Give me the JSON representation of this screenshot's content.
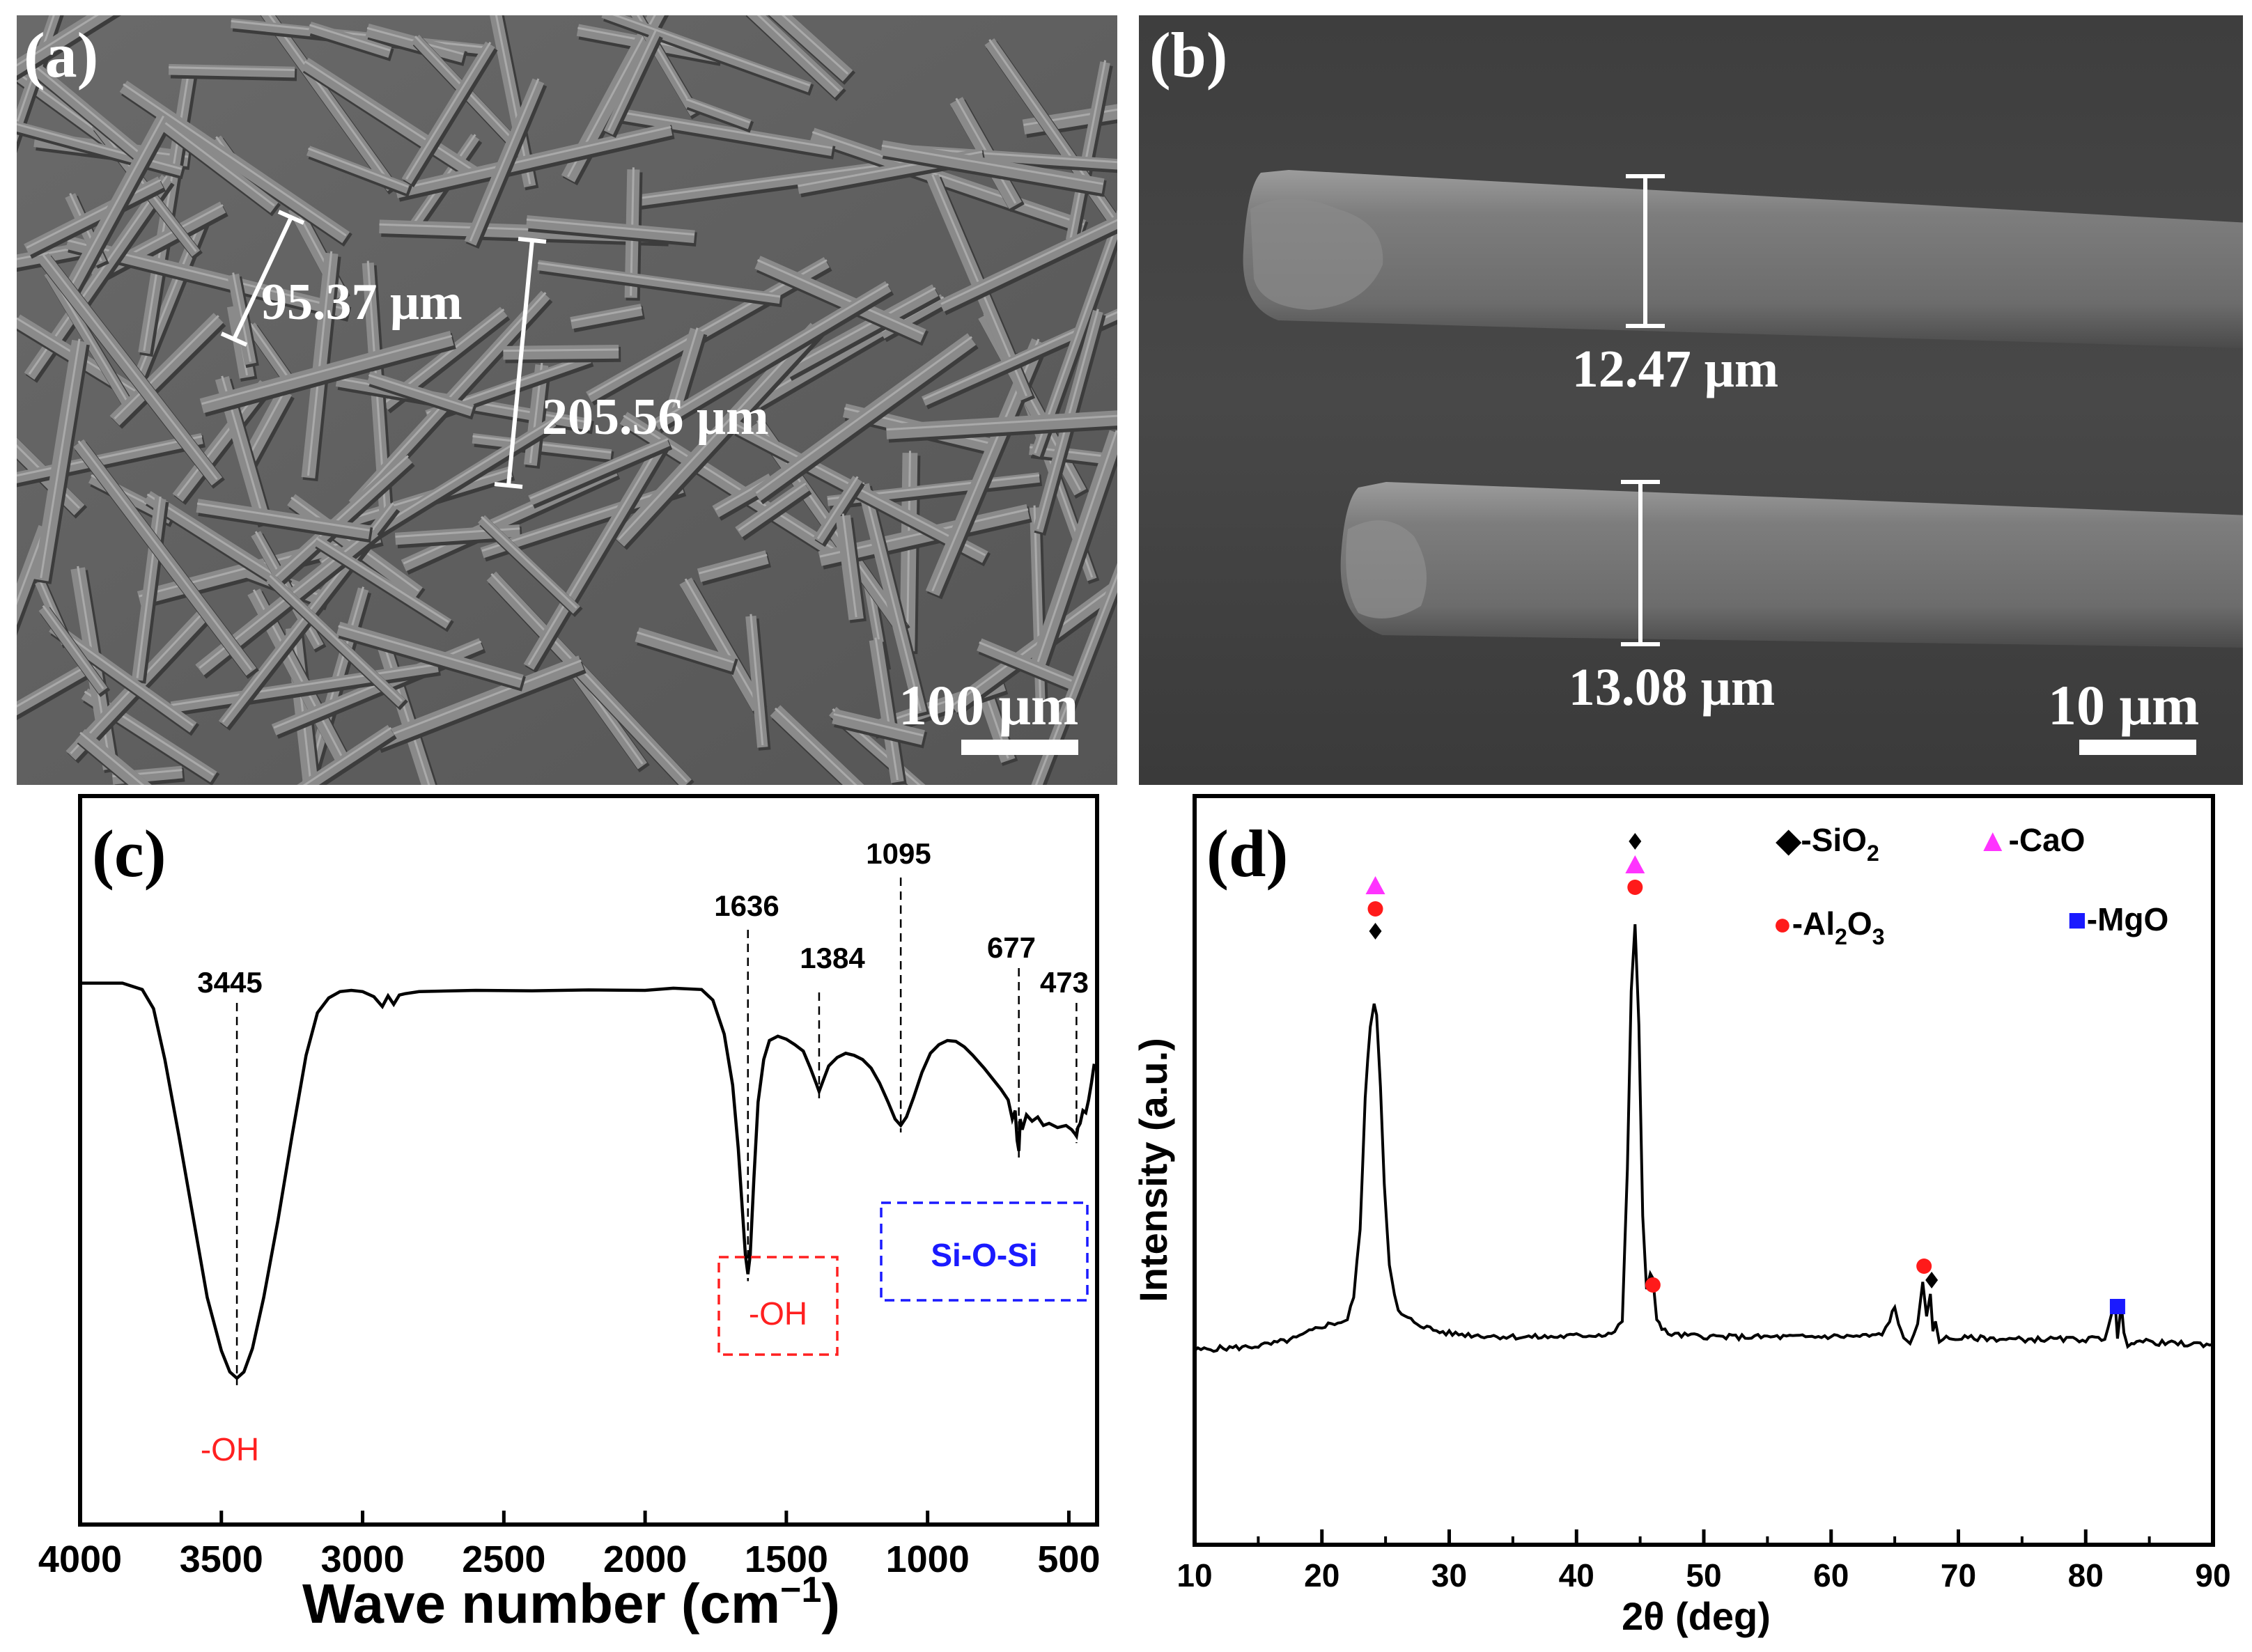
{
  "panel_a": {
    "label": "(a)",
    "measure_1": "95.37 μm",
    "measure_2": "205.56 μm",
    "scale_bar": "100 μm"
  },
  "panel_b": {
    "label": "(b)",
    "measure_1": "12.47 μm",
    "measure_2": "13.08 μm",
    "scale_bar": "10 μm"
  },
  "chart_data": [
    {
      "panel": "(c)",
      "type": "line",
      "xlabel_main": "Wave number (cm",
      "xlabel_sup": "−1",
      "xlabel_end": ")",
      "ylabel": "",
      "xlim": [
        4000,
        400
      ],
      "x_reversed": true,
      "x_ticks": [
        "4000",
        "3500",
        "3000",
        "2500",
        "2000",
        "1500",
        "1000",
        "500"
      ],
      "ylim": [
        0,
        100
      ],
      "series": [
        {
          "x": [
            4000,
            3850,
            3780,
            3740,
            3700,
            3650,
            3600,
            3550,
            3500,
            3470,
            3445,
            3420,
            3390,
            3350,
            3300,
            3250,
            3200,
            3160,
            3120,
            3080,
            3040,
            3000,
            2960,
            2930,
            2910,
            2890,
            2870,
            2850,
            2800,
            2600,
            2400,
            2200,
            2000,
            1900,
            1800,
            1760,
            1720,
            1690,
            1670,
            1655,
            1645,
            1636,
            1628,
            1615,
            1600,
            1580,
            1560,
            1530,
            1500,
            1470,
            1440,
            1415,
            1395,
            1384,
            1370,
            1350,
            1320,
            1290,
            1260,
            1230,
            1200,
            1170,
            1140,
            1115,
            1095,
            1075,
            1050,
            1020,
            990,
            960,
            930,
            900,
            870,
            840,
            800,
            770,
            740,
            715,
            700,
            690,
            683,
            677,
            672,
            665,
            650,
            630,
            610,
            590,
            570,
            540,
            510,
            490,
            478,
            473,
            468,
            460,
            450,
            440,
            430,
            420,
            410
          ],
          "y": [
            94.0,
            94.0,
            92.5,
            88.0,
            76.0,
            58.0,
            39.0,
            20.0,
            7.5,
            2.5,
            1.0,
            2.5,
            8.0,
            20.0,
            38.0,
            58.0,
            77.0,
            87.0,
            90.5,
            92.0,
            92.3,
            92.0,
            90.8,
            88.5,
            91.0,
            89.0,
            91.2,
            91.5,
            92.0,
            92.3,
            92.2,
            92.4,
            92.3,
            92.8,
            92.5,
            90.0,
            82.0,
            70.0,
            55.0,
            40.0,
            30.0,
            25.5,
            30.0,
            48.0,
            66.0,
            76.0,
            80.5,
            81.5,
            80.8,
            79.5,
            78.0,
            74.0,
            70.5,
            68.5,
            71.0,
            74.5,
            76.5,
            77.5,
            77.0,
            76.0,
            74.0,
            70.5,
            66.0,
            62.0,
            60.5,
            62.5,
            67.0,
            73.0,
            77.5,
            79.5,
            80.5,
            80.3,
            79.0,
            77.0,
            74.0,
            71.5,
            69.0,
            66.5,
            62.0,
            64.0,
            57.0,
            54.5,
            62.0,
            59.5,
            63.0,
            61.5,
            62.5,
            60.5,
            61.0,
            60.0,
            60.5,
            59.5,
            58.5,
            58.0,
            60.0,
            61.0,
            64.0,
            63.5,
            66.5,
            70.5,
            75.0
          ]
        }
      ],
      "annotations": [
        "3445",
        "1636",
        "1384",
        "1095",
        "677",
        "473"
      ],
      "group_labels": [
        "-OH",
        "-OH",
        "Si-O-Si"
      ]
    },
    {
      "panel": "(d)",
      "type": "line",
      "xlabel": "2θ (deg)",
      "ylabel": "Intensity (a.u.)",
      "xlim": [
        10,
        90
      ],
      "x_ticks": [
        "10",
        "20",
        "30",
        "40",
        "50",
        "60",
        "70",
        "80",
        "90"
      ],
      "ylim": [
        0,
        100
      ],
      "series": [
        {
          "x": [
            10,
            12,
            14,
            16,
            18,
            19,
            20,
            21,
            22,
            22.5,
            23,
            23.4,
            23.8,
            24.1,
            24.3,
            24.6,
            24.9,
            25.3,
            25.7,
            26.0,
            26.5,
            27,
            28,
            29,
            30,
            32,
            34,
            36,
            38,
            40,
            42,
            43,
            43.6,
            44.0,
            44.3,
            44.6,
            44.9,
            45.2,
            45.5,
            45.8,
            46.0,
            46.3,
            46.7,
            47.2,
            48,
            50,
            52,
            54,
            56,
            58,
            60,
            62,
            64,
            64.6,
            65.0,
            65.3,
            65.7,
            66.2,
            66.8,
            67.2,
            67.5,
            67.8,
            68.0,
            68.2,
            68.5,
            68.8,
            69.3,
            70,
            72,
            74,
            76,
            78,
            80,
            81.5,
            82.0,
            82.3,
            82.5,
            82.8,
            83.0,
            83.3,
            83.6,
            84,
            86,
            88,
            90
          ],
          "y": [
            28,
            28.3,
            28.5,
            29,
            30,
            31,
            32,
            32.5,
            33,
            37,
            48,
            70,
            82,
            86,
            84,
            72,
            56,
            42,
            37,
            34.5,
            33.5,
            33,
            32,
            31.2,
            30.8,
            30.5,
            30.3,
            30.2,
            30.2,
            30.4,
            30.6,
            31,
            33,
            58,
            88,
            99,
            82,
            50,
            38,
            41,
            40,
            33.5,
            31.5,
            30.8,
            30.5,
            30.3,
            30.2,
            30.2,
            30.2,
            30.2,
            30.3,
            30.3,
            30.5,
            33,
            35.5,
            32,
            30,
            29.5,
            32,
            39,
            34,
            37,
            31,
            33,
            29.5,
            30.2,
            29.8,
            30,
            30,
            29.8,
            29.8,
            29.8,
            29.8,
            30,
            34,
            36,
            30,
            35.5,
            30.5,
            29,
            29.5,
            29.5,
            29.2,
            29,
            29
          ]
        }
      ],
      "legend": {
        "sio2": {
          "sym": "◆",
          "text": "-SiO",
          "sub": "2"
        },
        "cao": {
          "sym": "▲",
          "text": "-CaO"
        },
        "al2o3": {
          "sym": "●",
          "text": "-Al",
          "sub1": "2",
          "mid": "O",
          "sub2": "3"
        },
        "mgo": {
          "sym": "■",
          "text": "-MgO"
        }
      },
      "legend_placement": "top-right"
    }
  ],
  "panel_labels": {
    "c": "(c)",
    "d": "(d)"
  },
  "colors": {
    "sem_background": "#5b5b5b",
    "ir_annotation_red": "#ff2020",
    "ir_annotation_blue": "#1a1aff",
    "sio2": "#000000",
    "cao": "#ff33ff",
    "al2o3": "#ff1a1a",
    "mgo": "#1a1aff"
  }
}
